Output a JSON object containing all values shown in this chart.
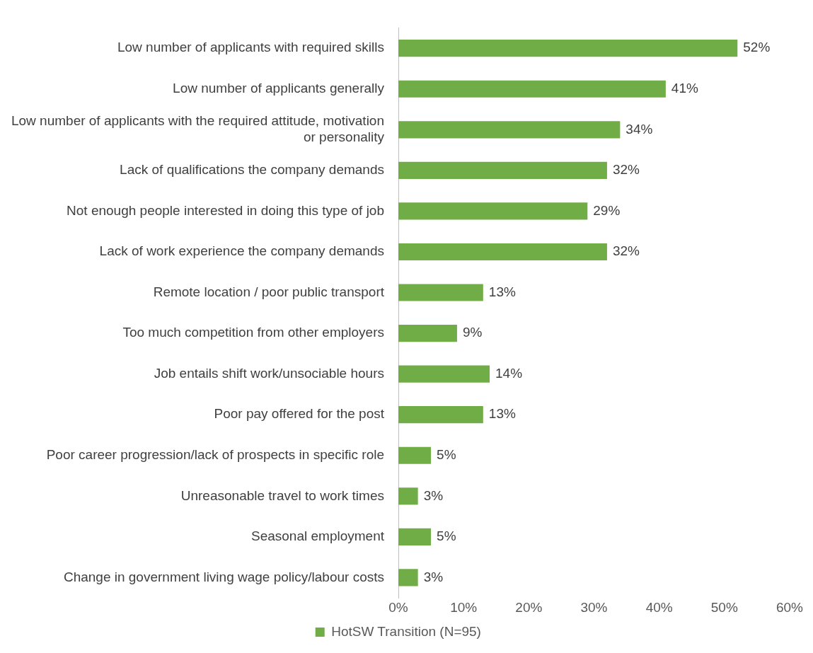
{
  "chart_data": {
    "type": "bar",
    "orientation": "horizontal",
    "categories": [
      "Low number of applicants with required skills",
      "Low number of applicants generally",
      "Low number of applicants with the required attitude, motivation or personality",
      "Lack of qualifications the company demands",
      "Not enough people interested in doing this type of job",
      "Lack of work experience the company demands",
      "Remote location / poor public transport",
      "Too much competition from other employers",
      "Job entails shift work/unsociable hours",
      "Poor pay offered for the post",
      "Poor career progression/lack of prospects in specific role",
      "Unreasonable travel to work times",
      "Seasonal employment",
      "Change in government living wage policy/labour costs"
    ],
    "series": [
      {
        "name": "HotSW Transition (N=95)",
        "color": "#70ad47",
        "values": [
          52,
          41,
          34,
          32,
          29,
          32,
          13,
          9,
          14,
          13,
          5,
          3,
          5,
          3
        ],
        "value_labels": [
          "52%",
          "41%",
          "34%",
          "32%",
          "29%",
          "32%",
          "13%",
          "9%",
          "14%",
          "13%",
          "5%",
          "3%",
          "5%",
          "3%"
        ]
      }
    ],
    "xlim": [
      0,
      60
    ],
    "xticks": [
      {
        "value": 0,
        "label": "0%"
      },
      {
        "value": 10,
        "label": "10%"
      },
      {
        "value": 20,
        "label": "20%"
      },
      {
        "value": 30,
        "label": "30%"
      },
      {
        "value": 40,
        "label": "40%"
      },
      {
        "value": 50,
        "label": "50%"
      },
      {
        "value": 60,
        "label": "60%"
      }
    ],
    "grid": false,
    "legend": "bottom"
  }
}
